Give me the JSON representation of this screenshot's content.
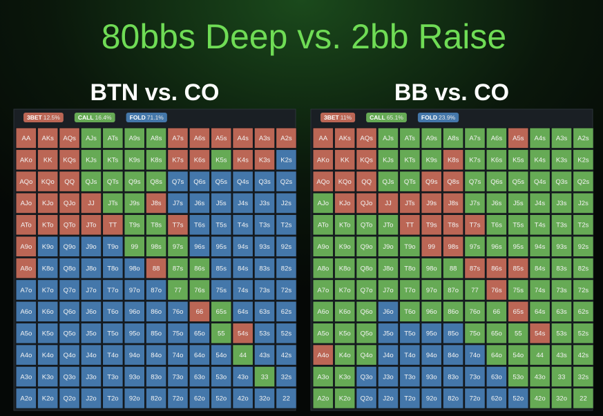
{
  "title": "80bbs Deep vs. 2bb Raise",
  "hands": [
    [
      "AA",
      "AKs",
      "AQs",
      "AJs",
      "ATs",
      "A9s",
      "A8s",
      "A7s",
      "A6s",
      "A5s",
      "A4s",
      "A3s",
      "A2s"
    ],
    [
      "AKo",
      "KK",
      "KQs",
      "KJs",
      "KTs",
      "K9s",
      "K8s",
      "K7s",
      "K6s",
      "K5s",
      "K4s",
      "K3s",
      "K2s"
    ],
    [
      "AQo",
      "KQo",
      "QQ",
      "QJs",
      "QTs",
      "Q9s",
      "Q8s",
      "Q7s",
      "Q6s",
      "Q5s",
      "Q4s",
      "Q3s",
      "Q2s"
    ],
    [
      "AJo",
      "KJo",
      "QJo",
      "JJ",
      "JTs",
      "J9s",
      "J8s",
      "J7s",
      "J6s",
      "J5s",
      "J4s",
      "J3s",
      "J2s"
    ],
    [
      "ATo",
      "KTo",
      "QTo",
      "JTo",
      "TT",
      "T9s",
      "T8s",
      "T7s",
      "T6s",
      "T5s",
      "T4s",
      "T3s",
      "T2s"
    ],
    [
      "A9o",
      "K9o",
      "Q9o",
      "J9o",
      "T9o",
      "99",
      "98s",
      "97s",
      "96s",
      "95s",
      "94s",
      "93s",
      "92s"
    ],
    [
      "A8o",
      "K8o",
      "Q8o",
      "J8o",
      "T8o",
      "98o",
      "88",
      "87s",
      "86s",
      "85s",
      "84s",
      "83s",
      "82s"
    ],
    [
      "A7o",
      "K7o",
      "Q7o",
      "J7o",
      "T7o",
      "97o",
      "87o",
      "77",
      "76s",
      "75s",
      "74s",
      "73s",
      "72s"
    ],
    [
      "A6o",
      "K6o",
      "Q6o",
      "J6o",
      "T6o",
      "96o",
      "86o",
      "76o",
      "66",
      "65s",
      "64s",
      "63s",
      "62s"
    ],
    [
      "A5o",
      "K5o",
      "Q5o",
      "J5o",
      "T5o",
      "95o",
      "85o",
      "75o",
      "65o",
      "55",
      "54s",
      "53s",
      "52s"
    ],
    [
      "A4o",
      "K4o",
      "Q4o",
      "J4o",
      "T4o",
      "94o",
      "84o",
      "74o",
      "64o",
      "54o",
      "44",
      "43s",
      "42s"
    ],
    [
      "A3o",
      "K3o",
      "Q3o",
      "J3o",
      "T3o",
      "93o",
      "83o",
      "73o",
      "63o",
      "53o",
      "43o",
      "33",
      "32s"
    ],
    [
      "A2o",
      "K2o",
      "Q2o",
      "J2o",
      "T2o",
      "92o",
      "82o",
      "72o",
      "62o",
      "52o",
      "42o",
      "32o",
      "22"
    ]
  ],
  "panels": [
    {
      "title": "BTN vs. CO",
      "legend": [
        {
          "name": "3BET",
          "value": "12.5%",
          "color": "#b65"
        },
        {
          "name": "CALL",
          "value": "16.4%",
          "color": "#6a5"
        },
        {
          "name": "FOLD",
          "value": "71.1%",
          "color": "#47a"
        }
      ],
      "cells": [
        [
          "#b65",
          "#b65",
          "#b65",
          "#6a5",
          "#6a5",
          "#6a5",
          "#6a5",
          "#b65",
          "#b65",
          "#b65",
          "#b65",
          "#b65",
          "#b65"
        ],
        [
          "#b65",
          "#b65",
          "#b65",
          "#6a5",
          "#6a5",
          "#6a5",
          "#6a5",
          "#b65",
          "#b65",
          "#6a5",
          "#b65",
          "#b65",
          "#47a"
        ],
        [
          "#b65",
          "#b65",
          "#b65",
          "#6a5",
          "#6a5",
          "#6a5",
          "#6a5",
          "#47a",
          "#47a",
          "#47a",
          "#47a",
          "#47a",
          "#47a"
        ],
        [
          "#b65",
          "#b65",
          "#b65",
          "#b65",
          "#6a5",
          "#6a5",
          "#b65",
          "#47a",
          "#47a",
          "#47a",
          "#47a",
          "#47a",
          "#47a"
        ],
        [
          "#b65",
          "#b65",
          "#b65",
          "#b65",
          "#b65",
          "#6a5",
          "#6a5",
          "#b65",
          "#47a",
          "#47a",
          "#47a",
          "#47a",
          "#47a"
        ],
        [
          "#b65",
          "#47a",
          "#47a",
          "#47a",
          "#47a",
          "#6a5",
          "#6a5",
          "#6a5",
          "#47a",
          "#47a",
          "#47a",
          "#47a",
          "#47a"
        ],
        [
          "#b65",
          "#47a",
          "#47a",
          "#47a",
          "#47a",
          "#47a",
          "#b65",
          "#6a5",
          "#6a5",
          "#47a",
          "#47a",
          "#47a",
          "#47a"
        ],
        [
          "#47a",
          "#47a",
          "#47a",
          "#47a",
          "#47a",
          "#47a",
          "#47a",
          "#6a5",
          "#6a5",
          "#47a",
          "#47a",
          "#47a",
          "#47a"
        ],
        [
          "#47a",
          "#47a",
          "#47a",
          "#47a",
          "#47a",
          "#47a",
          "#47a",
          "#47a",
          "#b65",
          "#6a5",
          "#47a",
          "#47a",
          "#47a"
        ],
        [
          "#47a",
          "#47a",
          "#47a",
          "#47a",
          "#47a",
          "#47a",
          "#47a",
          "#47a",
          "#47a",
          "#6a5",
          "#b65",
          "#47a",
          "#47a"
        ],
        [
          "#47a",
          "#47a",
          "#47a",
          "#47a",
          "#47a",
          "#47a",
          "#47a",
          "#47a",
          "#47a",
          "#47a",
          "#6a5",
          "#47a",
          "#47a"
        ],
        [
          "#47a",
          "#47a",
          "#47a",
          "#47a",
          "#47a",
          "#47a",
          "#47a",
          "#47a",
          "#47a",
          "#47a",
          "#47a",
          "#6a5",
          "#47a"
        ],
        [
          "#47a",
          "#47a",
          "#47a",
          "#47a",
          "#47a",
          "#47a",
          "#47a",
          "#47a",
          "#47a",
          "#47a",
          "#47a",
          "#47a",
          "#47a"
        ]
      ]
    },
    {
      "title": "BB vs. CO",
      "legend": [
        {
          "name": "3BET",
          "value": "11%",
          "color": "#b65"
        },
        {
          "name": "CALL",
          "value": "65.1%",
          "color": "#6a5"
        },
        {
          "name": "FOLD",
          "value": "23.9%",
          "color": "#47a"
        }
      ],
      "cells": [
        [
          "#b65",
          "#b65",
          "#b65",
          "#6a5",
          "#6a5",
          "#6a5",
          "#6a5",
          "#6a5",
          "#6a5",
          "#b65",
          "#6a5",
          "#6a5",
          "#6a5"
        ],
        [
          "#b65",
          "#b65",
          "#b65",
          "#6a5",
          "#6a5",
          "#6a5",
          "#b65",
          "#6a5",
          "#6a5",
          "#6a5",
          "#6a5",
          "#6a5",
          "#6a5"
        ],
        [
          "#b65",
          "#b65",
          "#b65",
          "#6a5",
          "#6a5",
          "#b65",
          "#b65",
          "#6a5",
          "#6a5",
          "#6a5",
          "#6a5",
          "#6a5",
          "#6a5"
        ],
        [
          "#6a5",
          "#b65",
          "#b65",
          "#b65",
          "#b65",
          "#b65",
          "#b65",
          "#6a5",
          "#6a5",
          "#6a5",
          "#6a5",
          "#6a5",
          "#6a5"
        ],
        [
          "#6a5",
          "#6a5",
          "#6a5",
          "#6a5",
          "#b65",
          "#b65",
          "#b65",
          "#b65",
          "#6a5",
          "#6a5",
          "#6a5",
          "#6a5",
          "#6a5"
        ],
        [
          "#6a5",
          "#6a5",
          "#6a5",
          "#6a5",
          "#6a5",
          "#b65",
          "#b65",
          "#6a5",
          "#6a5",
          "#6a5",
          "#6a5",
          "#6a5",
          "#6a5"
        ],
        [
          "#6a5",
          "#6a5",
          "#6a5",
          "#6a5",
          "#6a5",
          "#6a5",
          "#6a5",
          "#b65",
          "#b65",
          "#b65",
          "#6a5",
          "#6a5",
          "#6a5"
        ],
        [
          "#6a5",
          "#6a5",
          "#6a5",
          "#6a5",
          "#6a5",
          "#6a5",
          "#6a5",
          "#6a5",
          "#b65",
          "#6a5",
          "#6a5",
          "#6a5",
          "#6a5"
        ],
        [
          "#6a5",
          "#6a5",
          "#6a5",
          "#47a",
          "#6a5",
          "#6a5",
          "#6a5",
          "#6a5",
          "#6a5",
          "#b65",
          "#6a5",
          "#6a5",
          "#6a5"
        ],
        [
          "#6a5",
          "#6a5",
          "#6a5",
          "#47a",
          "#47a",
          "#47a",
          "#47a",
          "#6a5",
          "#6a5",
          "#6a5",
          "#b65",
          "#6a5",
          "#6a5"
        ],
        [
          "#b65",
          "#6a5",
          "#6a5",
          "#47a",
          "#47a",
          "#47a",
          "#47a",
          "#47a",
          "#6a5",
          "#6a5",
          "#6a5",
          "#6a5",
          "#6a5"
        ],
        [
          "#6a5",
          "#6a5",
          "#47a",
          "#47a",
          "#47a",
          "#47a",
          "#47a",
          "#47a",
          "#47a",
          "#6a5",
          "#6a5",
          "#6a5",
          "#6a5"
        ],
        [
          "#6a5",
          "#6a5",
          "#47a",
          "#47a",
          "#47a",
          "#47a",
          "#47a",
          "#47a",
          "#47a",
          "#47a",
          "#6a5",
          "#6a5",
          "#6a5"
        ]
      ]
    }
  ]
}
